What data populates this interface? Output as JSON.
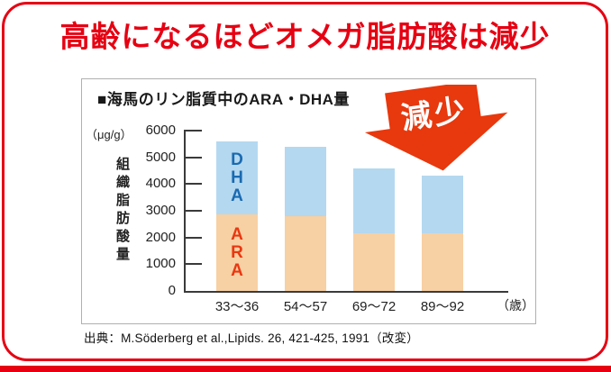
{
  "page": {
    "title": "高齢になるほどオメガ脂肪酸は減少",
    "source": "出典：M.Söderberg et al.,Lipids. 26, 421-425, 1991（改変）"
  },
  "panel": {
    "title": "■海馬のリン脂質中のARA・DHA量",
    "unit_label": "（μg/g）",
    "y_axis_title": "組織脂肪酸量",
    "x_axis_unit": "（歳）",
    "annotation": "減少"
  },
  "colors": {
    "accent_red": "#e60012",
    "arrow_red": "#e8380d",
    "ara_fill": "#f7d0a3",
    "dha_fill": "#b4d8f0",
    "ara_text": "#e83812",
    "dha_text": "#1a6ab1",
    "axis": "#3a3a3a",
    "panel_border": "#b0b0b0"
  },
  "chart_data": {
    "type": "bar",
    "stacked": true,
    "title": "海馬のリン脂質中のARA・DHA量",
    "y_unit": "μg/g",
    "ylabel": "組織脂肪酸量",
    "xlabel_unit": "歳",
    "categories": [
      "33〜36",
      "54〜57",
      "69〜72",
      "89〜92"
    ],
    "series": [
      {
        "name": "ARA",
        "values": [
          2850,
          2800,
          2150,
          2150
        ]
      },
      {
        "name": "DHA",
        "values": [
          2750,
          2600,
          2450,
          2150
        ]
      }
    ],
    "totals": [
      5600,
      5400,
      4600,
      4300
    ],
    "ylim": [
      0,
      6000
    ],
    "yticks": [
      0,
      1000,
      2000,
      3000,
      4000,
      5000,
      6000
    ],
    "grid": false,
    "legend_position": "labels inside first bar",
    "annotation": "減少 (decrease) red arrow pointing down over the two rightmost bars"
  }
}
